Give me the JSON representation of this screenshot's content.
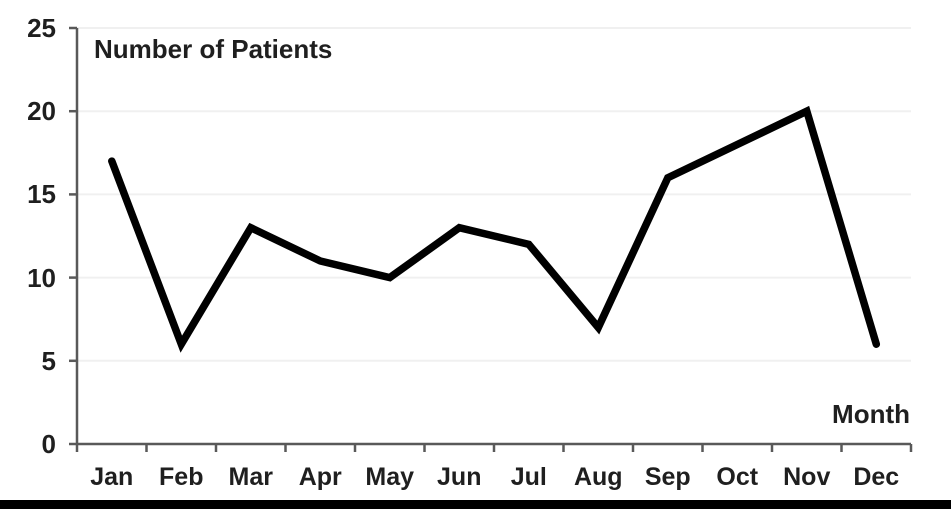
{
  "chart_data": {
    "type": "line",
    "title": "Number of Patients",
    "xlabel": "Month",
    "ylabel": "Number of Patients",
    "categories": [
      "Jan",
      "Feb",
      "Mar",
      "Apr",
      "May",
      "Jun",
      "Jul",
      "Aug",
      "Sep",
      "Oct",
      "Nov",
      "Dec"
    ],
    "values": [
      17,
      6,
      13,
      11,
      10,
      13,
      12,
      7,
      16,
      18,
      20,
      6
    ],
    "yticks": [
      0,
      5,
      10,
      15,
      20,
      25
    ],
    "ylim": [
      0,
      25
    ],
    "grid": true,
    "legend_position": "none",
    "colors": {
      "line": "#000000",
      "axis": "#595959",
      "gridline": "#f0f0f0",
      "text": "#1f1f1f",
      "bottom_bar": "#000000",
      "background": "#ffffff"
    }
  }
}
